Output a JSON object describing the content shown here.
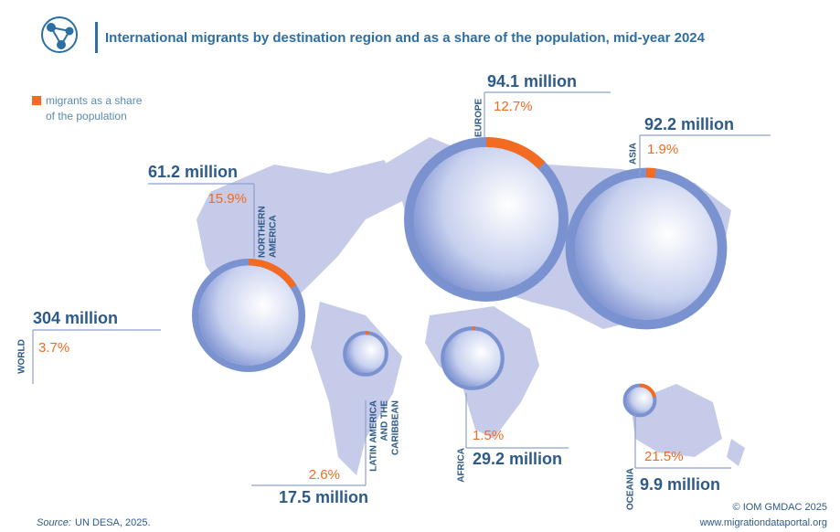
{
  "header": {
    "title": "International migrants by destination region and as a share of the population, mid-year 2024"
  },
  "legend": {
    "lines": [
      "migrants as a share",
      "of the population"
    ]
  },
  "world": {
    "name": "WORLD",
    "migrants_label": "304 million",
    "share_label": "3.7%"
  },
  "regions": [
    {
      "name_lines": [
        "NORTHERN",
        "AMERICA"
      ],
      "migrants_label": "61.2 million",
      "share_label": "15.9%"
    },
    {
      "name_lines": [
        "EUROPE"
      ],
      "migrants_label": "94.1 million",
      "share_label": "12.7%"
    },
    {
      "name_lines": [
        "ASIA"
      ],
      "migrants_label": "92.2 million",
      "share_label": "1.9%"
    },
    {
      "name_lines": [
        "LATIN AMERICA",
        "AND THE",
        "CARIBBEAN"
      ],
      "migrants_label": "17.5 million",
      "share_label": "2.6%"
    },
    {
      "name_lines": [
        "AFRICA"
      ],
      "migrants_label": "29.2 million",
      "share_label": "1.5%"
    },
    {
      "name_lines": [
        "OCEANIA"
      ],
      "migrants_label": "9.9 million",
      "share_label": "21.5%"
    }
  ],
  "footer": {
    "source_label": "Source:",
    "source_text": "UN DESA, 2025.",
    "credit": "© IOM GMDAC 2025",
    "url": "www.migrationdataportal.org"
  }
}
